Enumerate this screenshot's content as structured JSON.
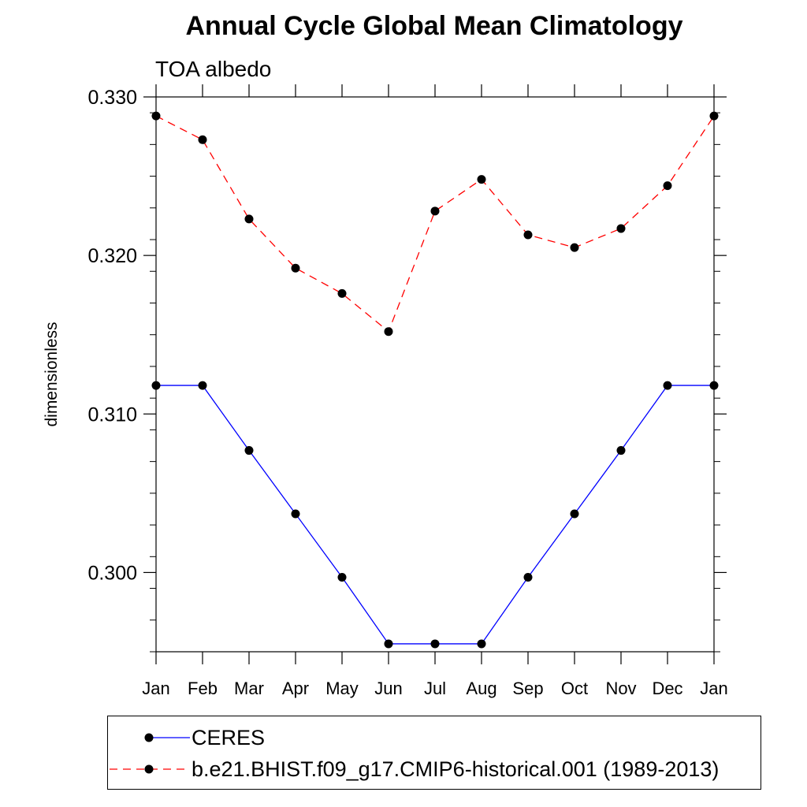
{
  "header": {
    "title": "Annual Cycle Global Mean Climatology",
    "subtitle": "TOA albedo"
  },
  "chart_data": {
    "type": "line",
    "title": "Annual Cycle Global Mean Climatology",
    "subtitle": "TOA albedo",
    "xlabel": "",
    "ylabel": "dimensionless",
    "categories": [
      "Jan",
      "Feb",
      "Mar",
      "Apr",
      "May",
      "Jun",
      "Jul",
      "Aug",
      "Sep",
      "Oct",
      "Nov",
      "Dec",
      "Jan"
    ],
    "ylim": [
      0.295,
      0.33
    ],
    "yticks": [
      0.3,
      0.31,
      0.32,
      0.33
    ],
    "ytick_labels": [
      "0.300",
      "0.310",
      "0.320",
      "0.330"
    ],
    "grid": false,
    "legend_position": "bottom",
    "series": [
      {
        "name": "CERES",
        "color": "#0000ff",
        "linestyle": "solid",
        "marker": "dot",
        "values": [
          0.3118,
          0.3118,
          0.3077,
          0.3037,
          0.2997,
          0.2955,
          0.2955,
          0.2955,
          0.2997,
          0.3037,
          0.3077,
          0.3118,
          0.3118
        ]
      },
      {
        "name": "b.e21.BHIST.f09_g17.CMIP6-historical.001 (1989-2013)",
        "color": "#ff0000",
        "linestyle": "dashed",
        "marker": "dot",
        "values": [
          0.3288,
          0.3273,
          0.3223,
          0.3192,
          0.3176,
          0.3152,
          0.3228,
          0.3248,
          0.3213,
          0.3205,
          0.3217,
          0.3244,
          0.3288
        ]
      }
    ]
  }
}
